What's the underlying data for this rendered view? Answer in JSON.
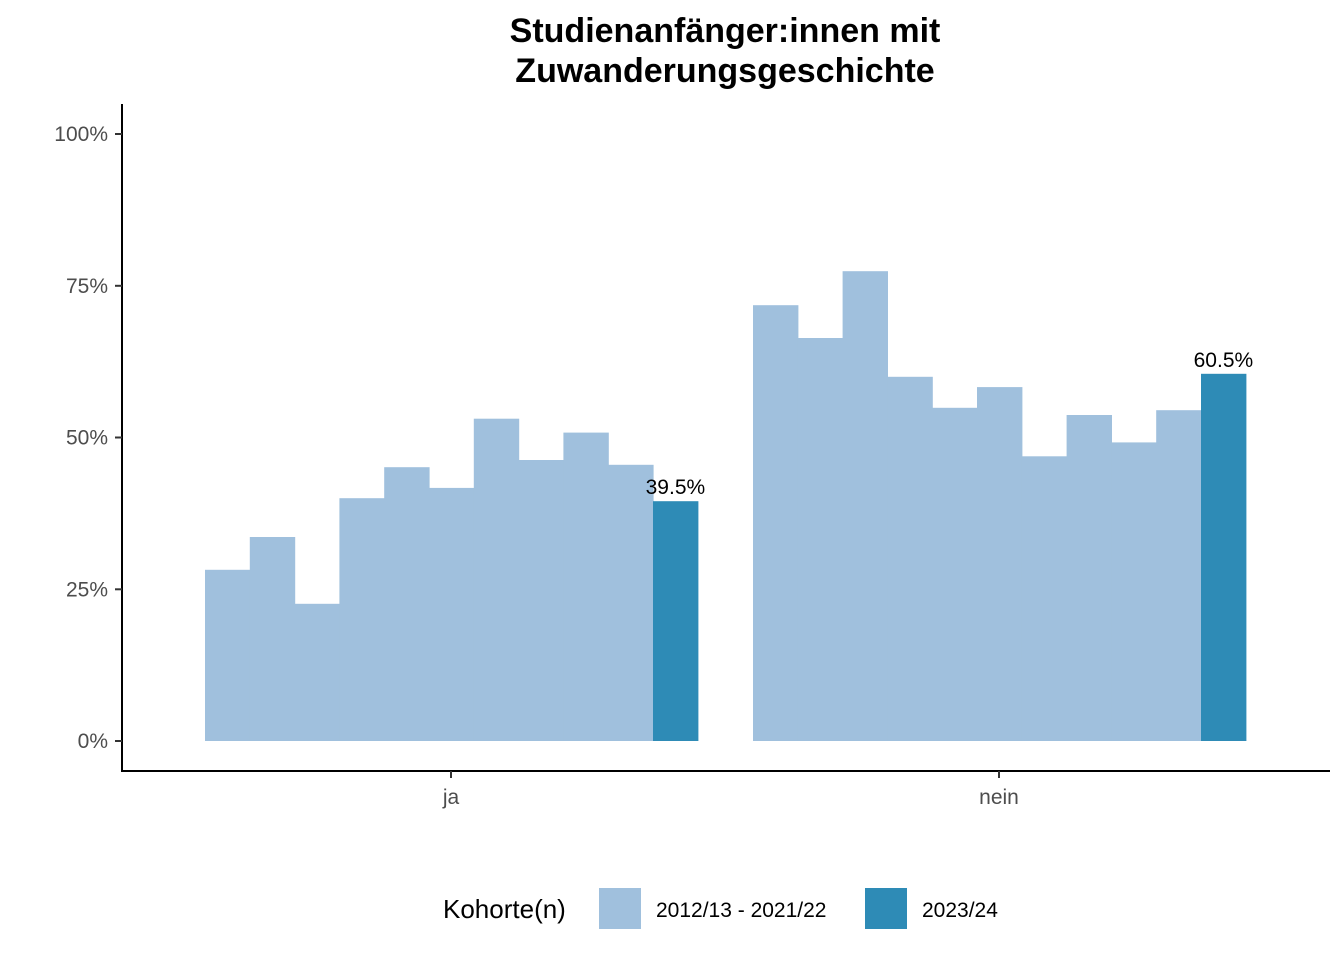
{
  "chart_data": {
    "type": "bar",
    "title": "Studienanfänger:innen mit",
    "subtitle": "Zuwanderungsgeschichte",
    "xlabel": "",
    "ylabel": "",
    "ylim": [
      0,
      100
    ],
    "y_ticks": [
      "0%",
      "25%",
      "50%",
      "75%",
      "100%"
    ],
    "y_tick_values": [
      0,
      25,
      50,
      75,
      100
    ],
    "categories": [
      "ja",
      "nein"
    ],
    "grid": false,
    "legend_position": "bottom",
    "series": [
      {
        "name": "2012/13 - 2021/22",
        "color": "#a0c0dd",
        "values_by_category": {
          "ja": [
            28.2,
            33.6,
            22.6,
            40.0,
            45.1,
            41.7,
            53.1,
            46.3,
            50.8,
            45.5
          ],
          "nein": [
            71.8,
            66.4,
            77.4,
            60.0,
            54.9,
            58.3,
            46.9,
            53.7,
            49.2,
            54.5
          ]
        }
      },
      {
        "name": "2023/24",
        "color": "#2e8bb6",
        "values_by_category": {
          "ja": [
            39.5
          ],
          "nein": [
            60.5
          ]
        },
        "data_labels": {
          "ja": "39.5%",
          "nein": "60.5%"
        }
      }
    ],
    "legend": {
      "title": "Kohorte(n)",
      "entries": [
        "2012/13 - 2021/22",
        "2023/24"
      ]
    }
  }
}
